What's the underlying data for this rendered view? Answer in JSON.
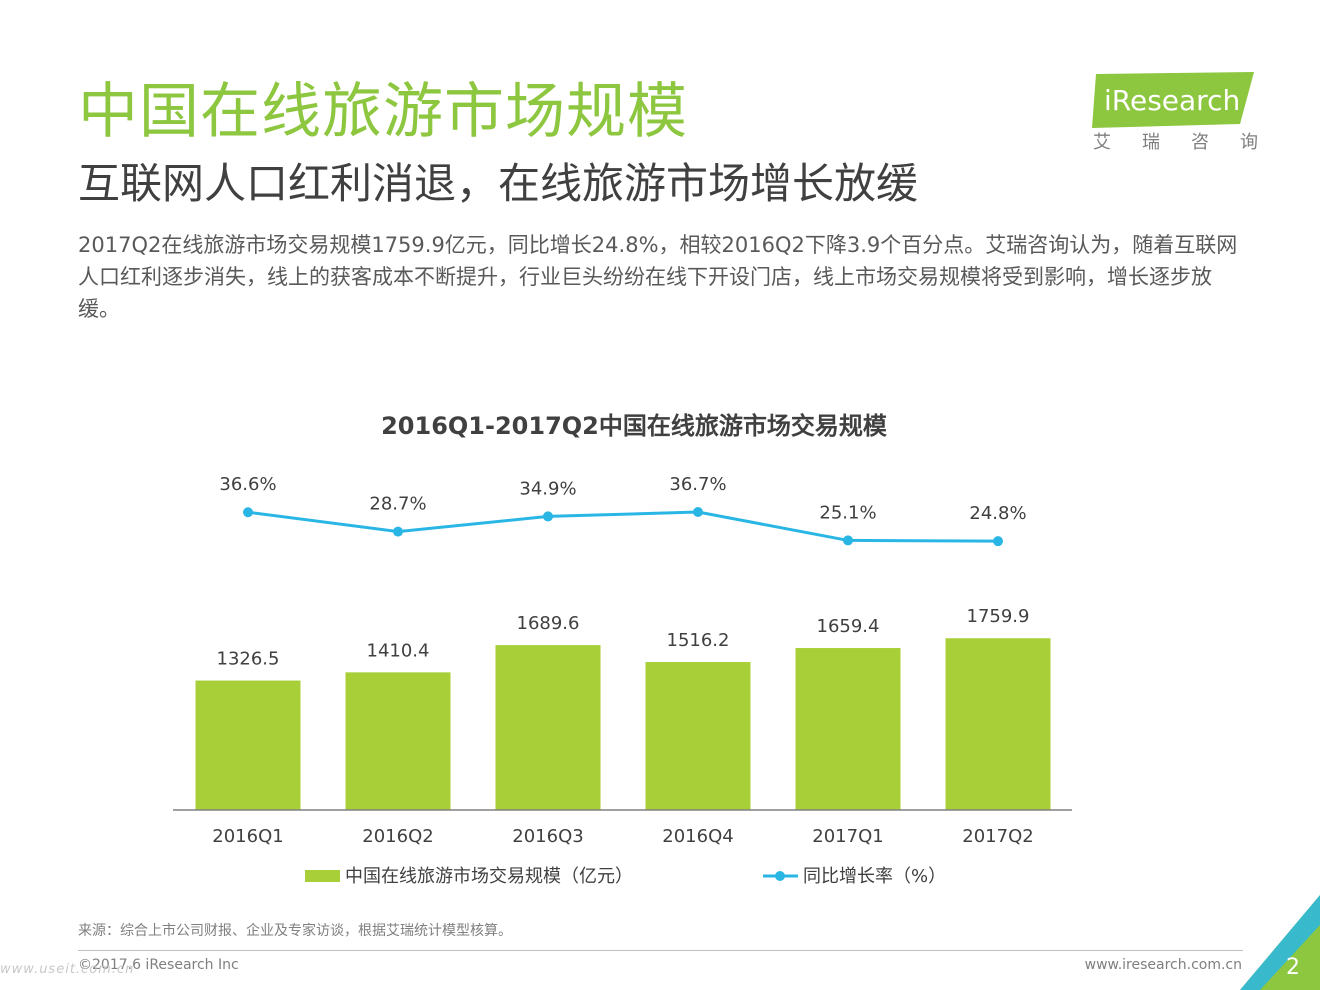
{
  "header": {
    "title": "中国在线旅游市场规模",
    "subtitle": "互联网人口红利消退，在线旅游市场增长放缓",
    "body": "2017Q2在线旅游市场交易规模1759.9亿元，同比增长24.8%，相较2016Q2下降3.9个百分点。艾瑞咨询认为，随着互联网人口红利逐步消失，线上的获客成本不断提升，行业巨头纷纷在线下开设门店，线上市场交易规模将受到影响，增长逐步放缓。"
  },
  "logo": {
    "text": "iResearch",
    "chars": [
      "艾",
      "瑞",
      "咨",
      "询"
    ],
    "green": "#8dc63f"
  },
  "chart_data": {
    "type": "bar",
    "title": "2016Q1-2017Q2中国在线旅游市场交易规模",
    "categories": [
      "2016Q1",
      "2016Q2",
      "2016Q3",
      "2016Q4",
      "2017Q1",
      "2017Q2"
    ],
    "series": [
      {
        "name": "中国在线旅游市场交易规模（亿元）",
        "type": "bar",
        "values": [
          1326.5,
          1410.4,
          1689.6,
          1516.2,
          1659.4,
          1759.9
        ],
        "labels": [
          "1326.5",
          "1410.4",
          "1689.6",
          "1516.2",
          "1659.4",
          "1759.9"
        ],
        "color": "#a9cf38"
      },
      {
        "name": "同比增长率（%）",
        "type": "line",
        "values": [
          36.6,
          28.7,
          34.9,
          36.7,
          25.1,
          24.8
        ],
        "labels": [
          "36.6%",
          "28.7%",
          "34.9%",
          "36.7%",
          "25.1%",
          "24.8%"
        ],
        "color": "#29b6e5"
      }
    ],
    "legend": "bottom",
    "grid": false
  },
  "footer": {
    "source": "来源：综合上市公司财报、企业及专家访谈，根据艾瑞统计模型核算。",
    "copyright": "©2017.6 iResearch Inc",
    "website": "www.iresearch.com.cn",
    "page": "2",
    "watermark": "www.useit.com.cn"
  }
}
